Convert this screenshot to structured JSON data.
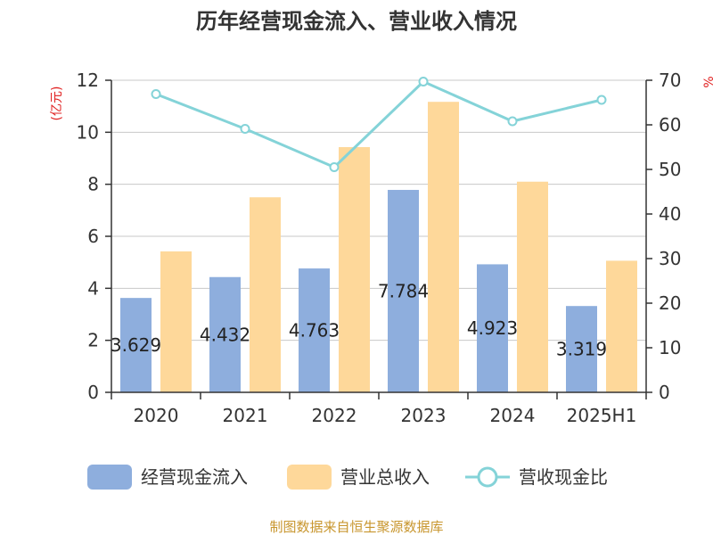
{
  "chart_data": {
    "type": "bar",
    "title": "历年经营现金流入、营业收入情况",
    "categories": [
      "2020",
      "2021",
      "2022",
      "2023",
      "2024",
      "2025H1"
    ],
    "series": [
      {
        "name": "经营现金流入",
        "type": "bar",
        "axis": "left",
        "color": "#8eaedd",
        "values": [
          3.629,
          4.432,
          4.763,
          7.784,
          4.923,
          3.319
        ],
        "data_labels": [
          "3.629",
          "4.432",
          "4.763",
          "7.784",
          "4.923",
          "3.319"
        ]
      },
      {
        "name": "营业总收入",
        "type": "bar",
        "axis": "left",
        "color": "#fed89a",
        "values": [
          5.42,
          7.5,
          9.43,
          11.17,
          8.1,
          5.06
        ]
      },
      {
        "name": "营收现金比",
        "type": "line",
        "axis": "right",
        "color": "#84d3d8",
        "values": [
          66.9,
          59.1,
          50.5,
          69.7,
          60.8,
          65.6
        ]
      }
    ],
    "y_left": {
      "label": "(亿元)",
      "ticks": [
        "0",
        "2",
        "4",
        "6",
        "8",
        "10",
        "12"
      ],
      "ylim": [
        0,
        12
      ]
    },
    "y_right": {
      "label": "%",
      "ticks": [
        "0",
        "10",
        "20",
        "30",
        "40",
        "50",
        "60",
        "70"
      ],
      "ylim": [
        0,
        70
      ]
    },
    "grid": true,
    "legend_position": "bottom"
  },
  "footer": {
    "source": "制图数据来自恒生聚源数据库"
  }
}
